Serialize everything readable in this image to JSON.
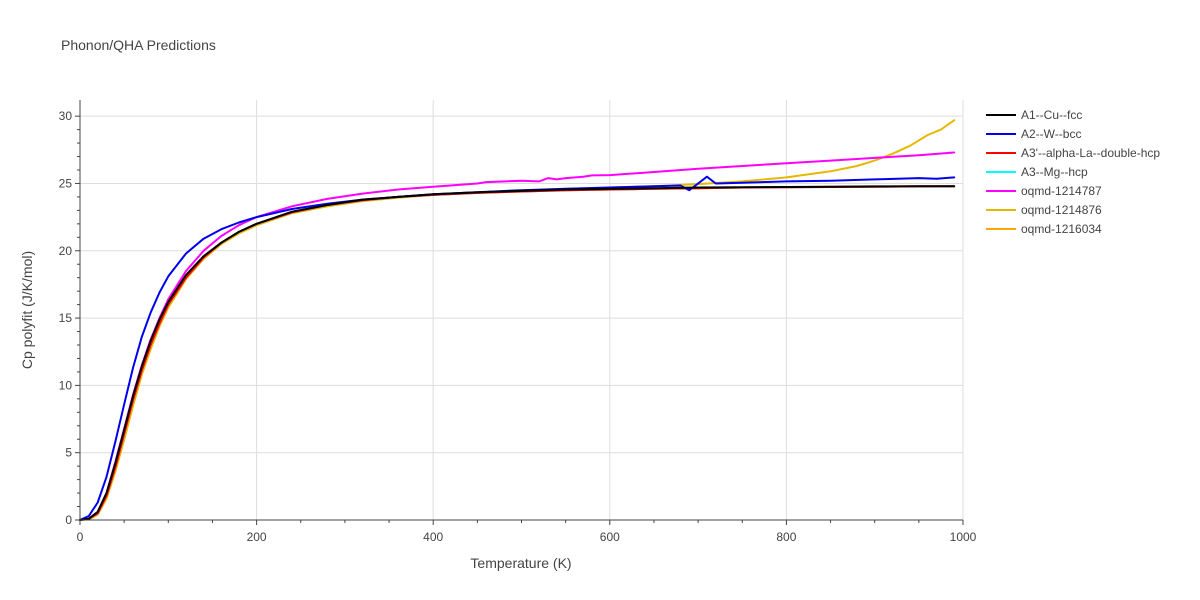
{
  "chart_data": {
    "type": "line",
    "title": "Phonon/QHA Predictions",
    "xlabel": "Temperature (K)",
    "ylabel": "Cp polyfit (J/K/mol)",
    "xlim": [
      0,
      1000
    ],
    "ylim": [
      0,
      31.2
    ],
    "xticks": [
      0,
      200,
      400,
      600,
      800,
      1000
    ],
    "yticks": [
      0,
      5,
      10,
      15,
      20,
      25,
      30
    ],
    "grid": true,
    "legend_position": "top-right",
    "series": [
      {
        "name": "A1--Cu--fcc",
        "color": "#000000",
        "x": [
          0,
          10,
          20,
          30,
          40,
          50,
          60,
          70,
          80,
          90,
          100,
          120,
          140,
          160,
          180,
          200,
          240,
          280,
          320,
          360,
          400,
          450,
          500,
          550,
          600,
          650,
          700,
          750,
          800,
          850,
          900,
          950,
          990
        ],
        "y": [
          0,
          0.1,
          0.6,
          2.0,
          4.2,
          6.7,
          9.2,
          11.4,
          13.3,
          14.9,
          16.2,
          18.2,
          19.6,
          20.6,
          21.4,
          22.0,
          22.9,
          23.4,
          23.8,
          24.0,
          24.2,
          24.35,
          24.45,
          24.55,
          24.6,
          24.65,
          24.7,
          24.72,
          24.74,
          24.76,
          24.78,
          24.8,
          24.8
        ]
      },
      {
        "name": "A2--W--bcc",
        "color": "#0000ee",
        "x": [
          0,
          10,
          20,
          30,
          40,
          50,
          60,
          70,
          80,
          90,
          100,
          120,
          140,
          160,
          180,
          200,
          240,
          280,
          320,
          360,
          400,
          450,
          500,
          550,
          600,
          650,
          680,
          690,
          700,
          710,
          720,
          750,
          800,
          850,
          900,
          950,
          970,
          990
        ],
        "y": [
          0,
          0.3,
          1.3,
          3.2,
          5.8,
          8.6,
          11.3,
          13.6,
          15.4,
          16.9,
          18.1,
          19.8,
          20.9,
          21.6,
          22.1,
          22.5,
          23.1,
          23.5,
          23.8,
          24.0,
          24.2,
          24.35,
          24.5,
          24.6,
          24.7,
          24.8,
          24.85,
          24.5,
          25.0,
          25.5,
          25.0,
          25.05,
          25.15,
          25.2,
          25.3,
          25.4,
          25.35,
          25.45
        ]
      },
      {
        "name": "A3'--alpha-La--double-hcp",
        "color": "#ff0000",
        "x": [
          0,
          10,
          20,
          30,
          40,
          50,
          60,
          70,
          80,
          90,
          100,
          120,
          140,
          160,
          180,
          200,
          240,
          280,
          320,
          360,
          400,
          450,
          500,
          550,
          600,
          650,
          700,
          750,
          800,
          850,
          900,
          950,
          990
        ],
        "y": [
          0,
          0.08,
          0.5,
          1.8,
          3.9,
          6.4,
          8.9,
          11.1,
          13.0,
          14.6,
          16.0,
          18.0,
          19.5,
          20.6,
          21.4,
          22.0,
          22.85,
          23.4,
          23.75,
          24.0,
          24.15,
          24.3,
          24.4,
          24.5,
          24.55,
          24.6,
          24.65,
          24.7,
          24.72,
          24.74,
          24.76,
          24.78,
          24.8
        ]
      },
      {
        "name": "A3--Mg--hcp",
        "color": "#00ffff",
        "x": [
          0,
          10,
          20,
          30,
          40,
          50,
          60,
          70,
          80,
          90,
          100,
          120,
          140,
          160,
          180,
          200,
          240,
          280,
          320,
          360,
          400,
          450,
          500,
          550,
          600,
          650,
          700,
          750,
          800,
          850,
          900,
          950,
          990
        ],
        "y": [
          0,
          0.08,
          0.5,
          1.8,
          3.9,
          6.4,
          8.9,
          11.1,
          13.0,
          14.6,
          16.0,
          18.0,
          19.5,
          20.6,
          21.4,
          22.0,
          22.85,
          23.4,
          23.75,
          24.0,
          24.15,
          24.3,
          24.4,
          24.5,
          24.55,
          24.6,
          24.65,
          24.7,
          24.72,
          24.74,
          24.76,
          24.78,
          24.8
        ]
      },
      {
        "name": "oqmd-1214787",
        "color": "#ff00ff",
        "x": [
          0,
          10,
          20,
          30,
          40,
          50,
          60,
          70,
          80,
          90,
          100,
          120,
          140,
          160,
          180,
          200,
          240,
          280,
          320,
          360,
          400,
          450,
          460,
          500,
          520,
          530,
          540,
          550,
          570,
          580,
          600,
          650,
          700,
          750,
          800,
          850,
          900,
          950,
          990
        ],
        "y": [
          0,
          0.1,
          0.6,
          2.0,
          4.3,
          6.8,
          9.3,
          11.5,
          13.4,
          15.0,
          16.4,
          18.5,
          20.0,
          21.1,
          21.9,
          22.5,
          23.3,
          23.85,
          24.25,
          24.55,
          24.75,
          25.0,
          25.1,
          25.2,
          25.15,
          25.4,
          25.3,
          25.4,
          25.5,
          25.6,
          25.62,
          25.85,
          26.1,
          26.3,
          26.5,
          26.7,
          26.9,
          27.1,
          27.3
        ]
      },
      {
        "name": "oqmd-1214876",
        "color": "#e6b800",
        "x": [
          0,
          10,
          20,
          30,
          40,
          50,
          60,
          70,
          80,
          90,
          100,
          120,
          140,
          160,
          180,
          200,
          240,
          280,
          320,
          360,
          400,
          450,
          500,
          550,
          600,
          650,
          700,
          750,
          800,
          850,
          880,
          900,
          920,
          940,
          960,
          975,
          990
        ],
        "y": [
          0,
          0.05,
          0.4,
          1.6,
          3.6,
          6.0,
          8.5,
          10.8,
          12.7,
          14.4,
          15.8,
          17.9,
          19.4,
          20.5,
          21.3,
          21.9,
          22.8,
          23.3,
          23.7,
          23.95,
          24.15,
          24.3,
          24.45,
          24.55,
          24.7,
          24.8,
          24.95,
          25.15,
          25.45,
          25.9,
          26.3,
          26.7,
          27.2,
          27.8,
          28.6,
          29.0,
          29.7
        ]
      },
      {
        "name": "oqmd-1216034",
        "color": "#ffa500",
        "x": [
          0,
          10,
          20,
          30,
          40,
          50,
          60,
          70,
          80,
          90,
          100,
          120,
          140,
          160,
          180,
          200,
          240,
          280,
          320,
          360,
          400,
          450,
          500,
          550,
          600,
          650,
          700,
          750,
          800,
          850,
          900,
          950,
          990
        ],
        "y": [
          0,
          0.05,
          0.4,
          1.6,
          3.6,
          6.0,
          8.5,
          10.8,
          12.7,
          14.4,
          15.8,
          17.9,
          19.4,
          20.5,
          21.3,
          21.9,
          22.8,
          23.3,
          23.7,
          23.95,
          24.15,
          24.3,
          24.4,
          24.5,
          24.55,
          24.6,
          24.65,
          24.7,
          24.72,
          24.75,
          24.77,
          24.8,
          24.8
        ]
      }
    ]
  }
}
